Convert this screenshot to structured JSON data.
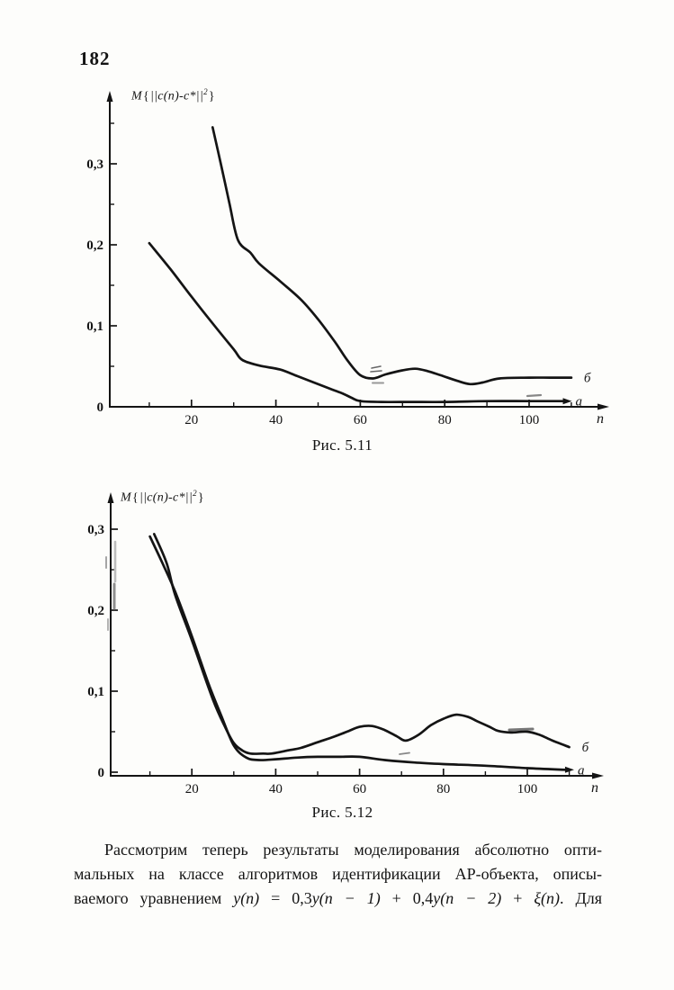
{
  "page": {
    "number": "182"
  },
  "figures": [
    {
      "id": "fig-5-11",
      "caption": "Рис. 5.11",
      "x_axis_label": "n",
      "y_axis_label": {
        "prefix": "M",
        "open": "{",
        "body": "||c(n)-c*||",
        "sup": "2",
        "close": "}"
      }
    },
    {
      "id": "fig-5-12",
      "caption": "Рис. 5.12",
      "x_axis_label": "n",
      "y_axis_label": {
        "prefix": "M",
        "open": "{",
        "body": "||c(n)-c*||",
        "sup": "2",
        "close": "}"
      }
    }
  ],
  "chart_data": [
    {
      "type": "line",
      "figure": "Рис. 5.11",
      "title": "",
      "xlabel": "n",
      "ylabel": "M{||c(n)-c*||²}",
      "xlim": [
        0,
        118
      ],
      "ylim": [
        0,
        0.37
      ],
      "grid": false,
      "legend_position": "curve-end-labels",
      "x_major_ticks": [
        20,
        40,
        60,
        80,
        100
      ],
      "x_minor_ticks": [
        10,
        30,
        50,
        70,
        90,
        110
      ],
      "y_major_ticks": [
        {
          "value": 0.3,
          "label": "0,3"
        },
        {
          "value": 0.2,
          "label": "0,2"
        },
        {
          "value": 0.1,
          "label": "0,1"
        },
        {
          "value": 0.0,
          "label": "0"
        }
      ],
      "y_minor_ticks": [
        0.35,
        0.25,
        0.15,
        0.05
      ],
      "series": [
        {
          "name": "а",
          "points": [
            [
              10,
              0.202
            ],
            [
              15,
              0.17
            ],
            [
              20,
              0.136
            ],
            [
              25,
              0.103
            ],
            [
              30,
              0.071
            ],
            [
              32,
              0.058
            ],
            [
              36,
              0.051
            ],
            [
              41,
              0.046
            ],
            [
              45,
              0.038
            ],
            [
              49,
              0.03
            ],
            [
              53,
              0.022
            ],
            [
              56,
              0.016
            ],
            [
              58,
              0.011
            ],
            [
              60,
              0.007
            ],
            [
              65,
              0.006
            ],
            [
              72,
              0.006
            ],
            [
              80,
              0.006
            ],
            [
              90,
              0.007
            ],
            [
              100,
              0.007
            ],
            [
              108,
              0.007
            ]
          ]
        },
        {
          "name": "б",
          "points": [
            [
              25,
              0.345
            ],
            [
              27,
              0.299
            ],
            [
              29,
              0.251
            ],
            [
              31,
              0.206
            ],
            [
              34,
              0.19
            ],
            [
              36,
              0.177
            ],
            [
              41,
              0.155
            ],
            [
              46,
              0.132
            ],
            [
              50,
              0.108
            ],
            [
              54,
              0.08
            ],
            [
              57,
              0.057
            ],
            [
              60,
              0.039
            ],
            [
              63,
              0.035
            ],
            [
              66,
              0.04
            ],
            [
              70,
              0.045
            ],
            [
              73,
              0.047
            ],
            [
              76,
              0.044
            ],
            [
              79,
              0.039
            ],
            [
              83,
              0.032
            ],
            [
              86,
              0.028
            ],
            [
              89,
              0.03
            ],
            [
              93,
              0.035
            ],
            [
              100,
              0.036
            ],
            [
              105,
              0.036
            ],
            [
              110,
              0.036
            ]
          ]
        }
      ]
    },
    {
      "type": "line",
      "figure": "Рис. 5.12",
      "title": "",
      "xlabel": "n",
      "ylabel": "M{||c(n)-c*||²}",
      "xlim": [
        0,
        118
      ],
      "ylim": [
        0,
        0.33
      ],
      "grid": false,
      "legend_position": "curve-end-labels",
      "x_major_ticks": [
        20,
        40,
        60,
        80,
        100
      ],
      "x_minor_ticks": [
        10,
        30,
        50,
        70,
        90,
        110
      ],
      "y_major_ticks": [
        {
          "value": 0.3,
          "label": "0,3"
        },
        {
          "value": 0.2,
          "label": "0,2"
        },
        {
          "value": 0.1,
          "label": "0,1"
        },
        {
          "value": 0.0,
          "label": "0"
        }
      ],
      "y_minor_ticks": [
        0.25,
        0.15,
        0.05
      ],
      "series": [
        {
          "name": "а",
          "points": [
            [
              10,
              0.291
            ],
            [
              13,
              0.258
            ],
            [
              16,
              0.223
            ],
            [
              20,
              0.168
            ],
            [
              24,
              0.109
            ],
            [
              27,
              0.07
            ],
            [
              30,
              0.033
            ],
            [
              33,
              0.018
            ],
            [
              36,
              0.015
            ],
            [
              40,
              0.016
            ],
            [
              45,
              0.018
            ],
            [
              50,
              0.019
            ],
            [
              55,
              0.019
            ],
            [
              60,
              0.019
            ],
            [
              66,
              0.015
            ],
            [
              73,
              0.012
            ],
            [
              80,
              0.01
            ],
            [
              90,
              0.008
            ],
            [
              100,
              0.005
            ],
            [
              109,
              0.003
            ]
          ]
        },
        {
          "name": "б",
          "points": [
            [
              11,
              0.294
            ],
            [
              14,
              0.258
            ],
            [
              16,
              0.219
            ],
            [
              20,
              0.163
            ],
            [
              25,
              0.09
            ],
            [
              28,
              0.055
            ],
            [
              30,
              0.036
            ],
            [
              32,
              0.027
            ],
            [
              34,
              0.023
            ],
            [
              37,
              0.023
            ],
            [
              39,
              0.023
            ],
            [
              43,
              0.027
            ],
            [
              46,
              0.03
            ],
            [
              50,
              0.037
            ],
            [
              54,
              0.044
            ],
            [
              57,
              0.05
            ],
            [
              60,
              0.056
            ],
            [
              63,
              0.057
            ],
            [
              66,
              0.052
            ],
            [
              69,
              0.044
            ],
            [
              71,
              0.039
            ],
            [
              74,
              0.046
            ],
            [
              77,
              0.058
            ],
            [
              80,
              0.066
            ],
            [
              83,
              0.071
            ],
            [
              86,
              0.068
            ],
            [
              88,
              0.063
            ],
            [
              91,
              0.056
            ],
            [
              93,
              0.051
            ],
            [
              96,
              0.049
            ],
            [
              100,
              0.05
            ],
            [
              103,
              0.046
            ],
            [
              106,
              0.039
            ],
            [
              110,
              0.031
            ]
          ]
        }
      ]
    }
  ],
  "paragraph": {
    "line1": "Рассмотрим теперь результаты моделирования абсолютно опти-",
    "line2": "мальных на классе алгоритмов идентификации АР-объекта, описы-",
    "line3": {
      "t1": "ваемого уравнением ",
      "m1": "y(n)",
      "t2": " = 0,3",
      "m2": "y(n − 1)",
      "t3": " + 0,4",
      "m3": "y(n − 2)",
      "t4": " + ",
      "m4": "ξ(n)",
      "t5": ". Для"
    }
  }
}
